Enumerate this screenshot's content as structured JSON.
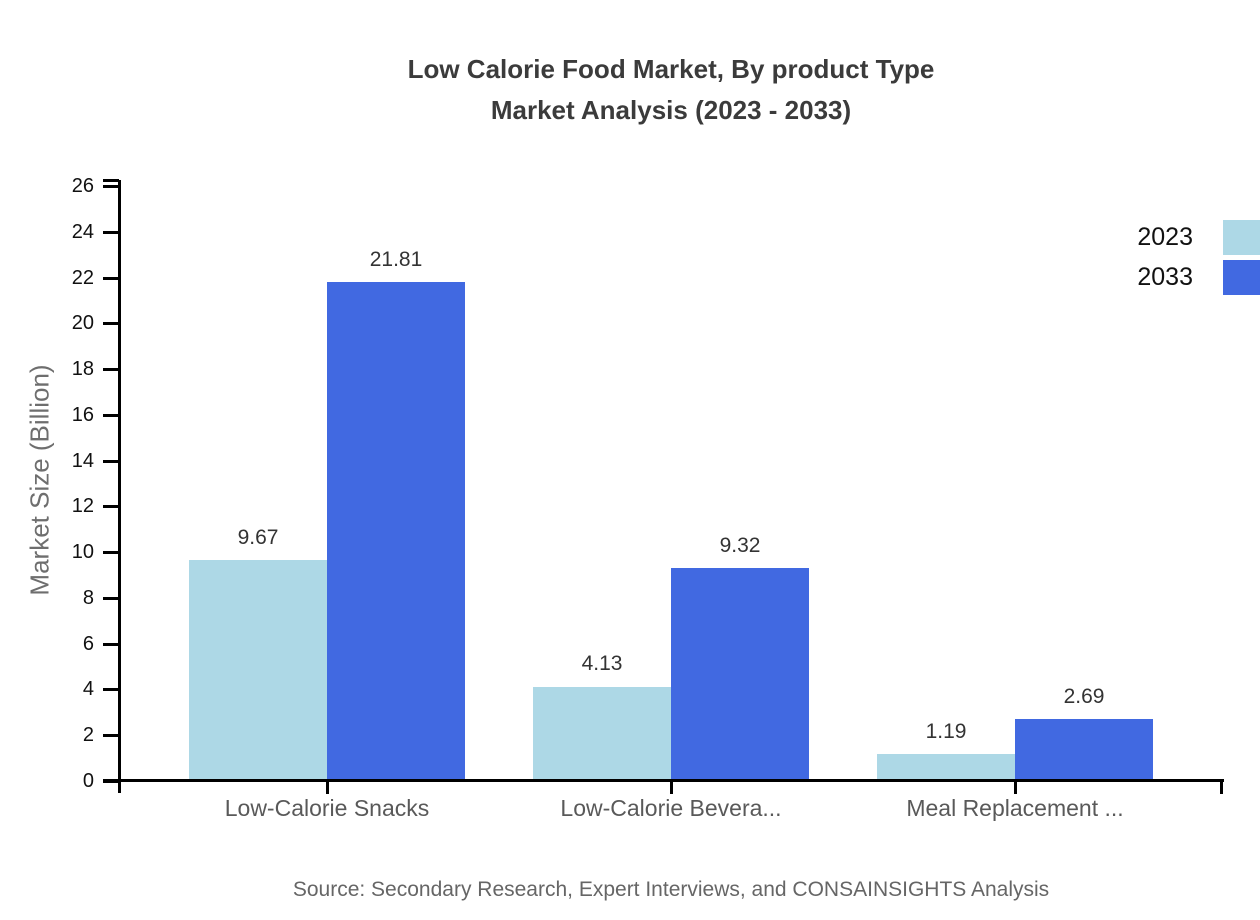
{
  "title": {
    "line1": "Low Calorie Food Market, By product Type",
    "line2": "Market Analysis (2023 - 2033)"
  },
  "source_note": "Source: Secondary Research, Expert Interviews, and CONSAINSIGHTS Analysis",
  "colors": {
    "background": "#FFFFFF",
    "axis": "#000000",
    "series_2023": "#ADD8E6",
    "series_2033": "#4169E1",
    "title_text": "#3B3B3B",
    "tick_text": "#111111",
    "category_text": "#595959",
    "value_text": "#333333",
    "ylabel_text": "#6E6E6E",
    "source_text": "#666666"
  },
  "chart_data": {
    "type": "bar",
    "title": "Low Calorie Food Market, By product Type Market Analysis (2023 - 2033)",
    "categories": [
      "Low-Calorie Snacks",
      "Low-Calorie Bevera...",
      "Meal Replacement ..."
    ],
    "series": [
      {
        "name": "2023",
        "color": "#ADD8E6",
        "values": [
          9.67,
          4.13,
          1.19
        ]
      },
      {
        "name": "2033",
        "color": "#4169E1",
        "values": [
          21.81,
          9.32,
          2.69
        ]
      }
    ],
    "xlabel": "",
    "ylabel": "Market Size (Billion)",
    "ylim": [
      0,
      26
    ],
    "ytick_step": 2,
    "yticks": [
      0,
      2,
      4,
      6,
      8,
      10,
      12,
      14,
      16,
      18,
      20,
      22,
      24,
      26
    ],
    "grid": false,
    "legend_position": "right-top",
    "value_label_decimals": 2
  }
}
